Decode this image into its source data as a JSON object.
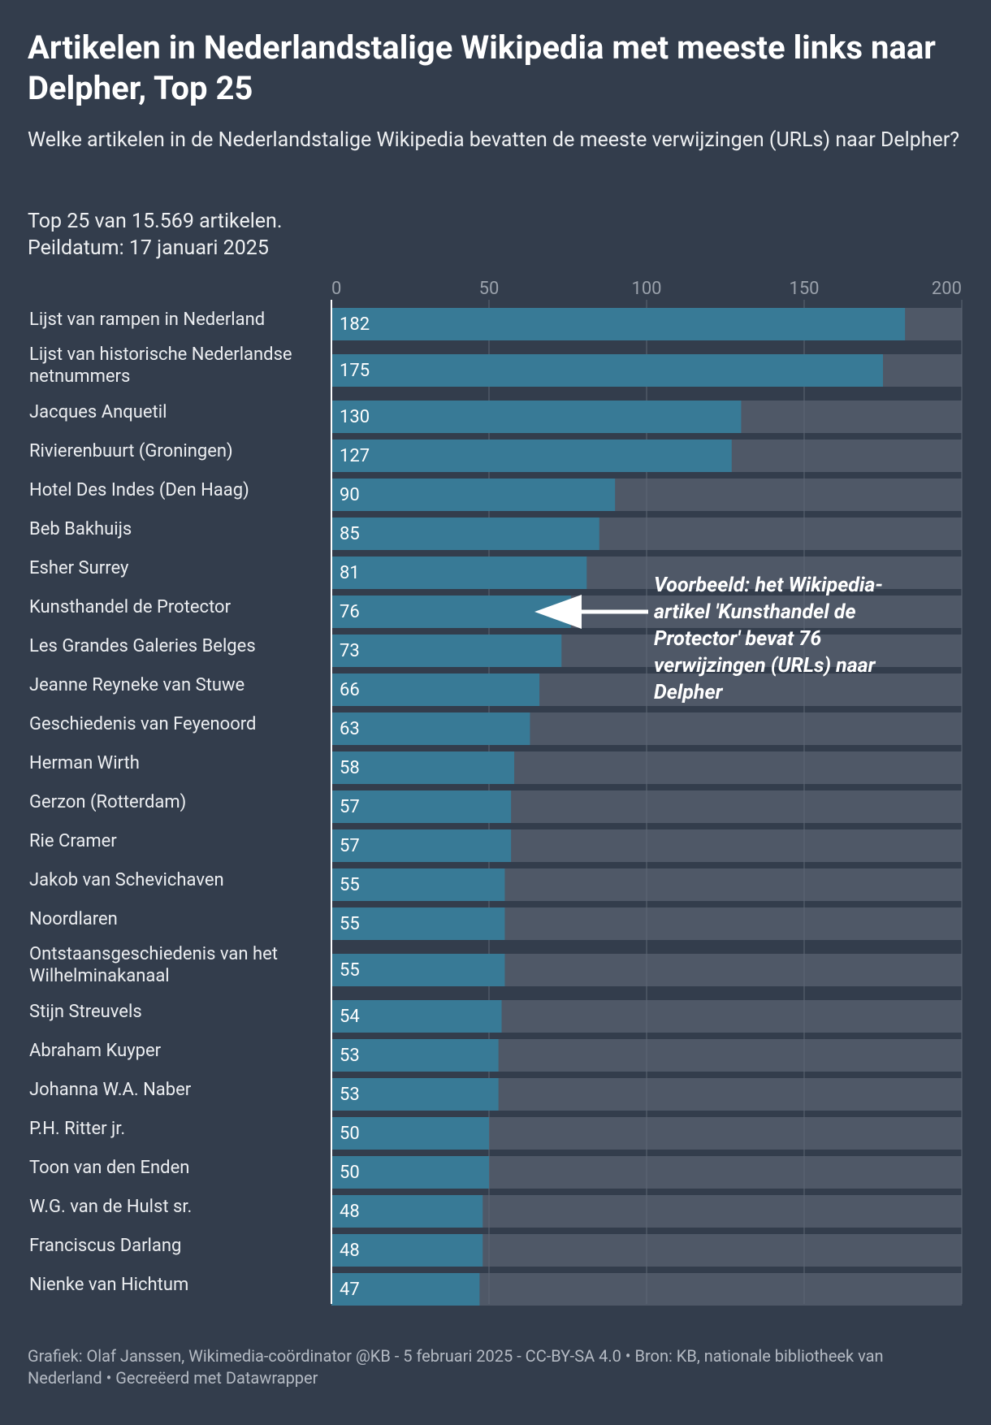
{
  "chart_data": {
    "type": "bar",
    "title": "Artikelen in Nederlandstalige Wikipedia met meeste links naar Delpher, Top 25",
    "subtitle": "Welke artikelen in de Nederlandstalige Wikipedia bevatten de meeste verwijzingen (URLs) naar Delpher?",
    "notes": [
      "Top 25 van 15.569 artikelen.",
      "Peildatum: 17 januari 2025"
    ],
    "categories": [
      "Lijst van rampen in Nederland",
      "Lijst van historische Nederlandse netnummers",
      "Jacques Anquetil",
      "Rivierenbuurt (Groningen)",
      "Hotel Des Indes (Den Haag)",
      "Beb Bakhuijs",
      "Esher Surrey",
      "Kunsthandel de Protector",
      "Les Grandes Galeries Belges",
      "Jeanne Reyneke van Stuwe",
      "Geschiedenis van Feyenoord",
      "Herman Wirth",
      "Gerzon (Rotterdam)",
      "Rie Cramer",
      "Jakob van Schevichaven",
      "Noordlaren",
      "Ontstaansgeschiedenis van het Wilhelminakanaal",
      "Stijn Streuvels",
      "Abraham Kuyper",
      "Johanna W.A. Naber",
      "P.H. Ritter jr.",
      "Toon van den Enden",
      "W.G. van de Hulst sr.",
      "Franciscus Darlang",
      "Nienke van Hichtum"
    ],
    "values": [
      182,
      175,
      130,
      127,
      90,
      85,
      81,
      76,
      73,
      66,
      63,
      58,
      57,
      57,
      55,
      55,
      55,
      54,
      53,
      53,
      50,
      50,
      48,
      48,
      47
    ],
    "color": "#387a96",
    "track_color": "#4f5867",
    "xlim": [
      0,
      200
    ],
    "xticks": [
      0,
      50,
      100,
      150,
      200
    ],
    "grid": true,
    "annotation": "Voorbeeld: het Wikipedia-artikel 'Kunsthandel de Protector' bevat 76 verwijzingen (URLs) naar Delpher",
    "footer": "Grafiek: Olaf Janssen, Wikimedia-coördinator @KB - 5 februari 2025 - CC-BY-SA 4.0 • Bron: KB, nationale bibliotheek van Nederland • Gecreëerd met Datawrapper"
  }
}
